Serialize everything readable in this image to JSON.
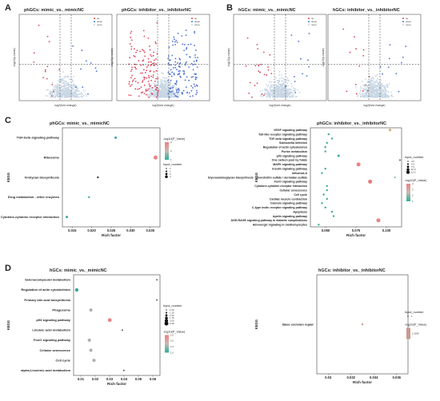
{
  "panels": {
    "A": {
      "letter": "A"
    },
    "B": {
      "letter": "B"
    },
    "C": {
      "letter": "C"
    },
    "D": {
      "letter": "D"
    }
  },
  "volcano": {
    "xlabel": "log2(fold change)",
    "ylabel": "-log10(p-value)",
    "legend": [
      "up",
      "down",
      "none"
    ],
    "colors": {
      "up": "#e0455a",
      "down": "#4a6fd4",
      "none": "#c7d6e4"
    },
    "plots": [
      {
        "title": "phGCs: mimic_vs._mimicNC"
      },
      {
        "title": "phGCs: inhibitor_vs._inhibitorNC"
      },
      {
        "title": "hGCs: mimic_vs._mimicNC"
      },
      {
        "title": "hGCs: inhibitor_vs._inhibitorNC"
      }
    ]
  },
  "common": {
    "kegg_label": "KEGG",
    "rich_label": "Rich factor",
    "input_label": "Input_number",
    "pval_label": "-log10(P_Value)"
  },
  "chart_data": [
    {
      "type": "scatter",
      "title": "phGCs: mimic_vs._mimicNC",
      "categories": [
        "TGF-beta signaling pathway",
        "Ribosome",
        "N-Glycan biosynthesis",
        "Drug metabolism - other enzymes",
        "Cytokine-cytokine receptor interaction"
      ],
      "x": [
        0.026,
        0.035,
        0.022,
        0.02,
        0.015
      ],
      "xlim": [
        0.014,
        0.036
      ],
      "xticks": [
        "0.015",
        "0.020",
        "0.025",
        "0.030",
        "0.035"
      ],
      "colors": [
        "#3aa89a",
        "#e98686",
        "#3a3a3a",
        "#3aa89a",
        "#3aa89a"
      ],
      "sizes": [
        1.5,
        2.5,
        1.2,
        1.2,
        1.5
      ],
      "input_legend": [
        "1",
        "2",
        "3",
        "4"
      ],
      "pval_ticks": [
        "3",
        "2",
        "1"
      ]
    },
    {
      "type": "scatter",
      "title": "phGCs: inhibitor_vs._inhibitorNC",
      "categories": [
        "VEGF signaling pathway",
        "Toll-like receptor signaling pathway",
        "TGF-beta signaling pathway",
        "Salmonella infection",
        "Regulation of actin cytoskeleton",
        "Purine metabolism",
        "p53 signaling pathway",
        "One carbon pool by folate",
        "MAPK signaling pathway",
        "Insulin signaling pathway",
        "Influenza A",
        "Glycosaminoglycan biosynthesis - chondroitin sulfate / dermatan sulfate",
        "FoxO signaling pathway",
        "Cytokine-cytokine receptor interaction",
        "Cellular senescence",
        "Cell cycle",
        "Cardiac muscle contraction",
        "Calcium signaling pathway",
        "C-type lectin receptor signaling pathway",
        "Apoptosis",
        "Apelin signaling pathway",
        "AGE-RAGE signaling pathway in diabetic complications",
        "Adrenergic signaling in cardiomyocytes"
      ],
      "x": [
        0.093,
        0.056,
        0.058,
        0.055,
        0.054,
        0.054,
        0.062,
        0.099,
        0.074,
        0.054,
        0.052,
        0.096,
        0.081,
        0.055,
        0.055,
        0.053,
        0.055,
        0.052,
        0.054,
        0.058,
        0.059,
        0.086,
        0.05
      ],
      "xlim": [
        0.045,
        0.1
      ],
      "xticks": [
        "0.050",
        "0.075",
        "0.100"
      ],
      "colors": [
        "#d9a06b",
        "#3aa89a",
        "#3aa89a",
        "#3aa89a",
        "#3aa89a",
        "#3aa89a",
        "#3aa89a",
        "#3a3a3a",
        "#e98686",
        "#3aa89a",
        "#3aa89a",
        "#3aa89a",
        "#e97a7a",
        "#3aa89a",
        "#3aa89a",
        "#3aa89a",
        "#3aa89a",
        "#3aa89a",
        "#3aa89a",
        "#3aa89a",
        "#3aa89a",
        "#e98686",
        "#3aa89a"
      ],
      "sizes": [
        1.5,
        1.2,
        1.2,
        1.2,
        1.2,
        1.2,
        1.5,
        0.9,
        2.5,
        1.2,
        1.2,
        0.9,
        2.5,
        1.2,
        1.2,
        1.2,
        1.2,
        1.2,
        1.2,
        1.2,
        1.2,
        2.5,
        1.2
      ],
      "input_legend": [
        "4.0",
        "5.0",
        "7.5",
        "10.0",
        "12.5"
      ],
      "pval_ticks": [
        "4",
        "3",
        "2",
        "1"
      ]
    },
    {
      "type": "scatter",
      "title": "hGCs: mimic_vs._mimicNC",
      "categories": [
        "Selenocompound metabolism",
        "Regulation of actin cytoskeleton",
        "Primary bile acid biosynthesis",
        "Phagosome",
        "p53 signaling pathway",
        "Linoleic acid metabolism",
        "FoxO signaling pathway",
        "Cellular senescence",
        "Cell cycle",
        "alpha-Linolenic acid metabolism"
      ],
      "x": [
        0.062,
        0.011,
        0.062,
        0.02,
        0.032,
        0.04,
        0.019,
        0.02,
        0.022,
        0.041
      ],
      "xlim": [
        0.009,
        0.064
      ],
      "xticks": [
        "0.01",
        "0.02",
        "0.03",
        "0.04",
        "0.05",
        "0.06"
      ],
      "colors": [
        "#3a3a3a",
        "#3aa89a",
        "#3a3a3a",
        "#a9b3a6",
        "#e98686",
        "#3a3a3a",
        "#a9b3a6",
        "#a9b3a6",
        "#a9b3a6",
        "#3a3a3a"
      ],
      "sizes": [
        0.9,
        2.2,
        0.9,
        2.0,
        2.4,
        0.9,
        2.0,
        2.0,
        2.0,
        0.9
      ],
      "input_legend": [
        "1.00",
        "1.25",
        "1.50",
        "1.75",
        "2.00",
        "2.25"
      ],
      "pval_ticks": [
        "2.5",
        "2.0",
        "1.5",
        "1.0"
      ]
    },
    {
      "type": "scatter",
      "title": "hGCs: inhibitor_vs._inhibitorNC",
      "categories": [
        "Base excision repair"
      ],
      "x": [
        0.033
      ],
      "xlim": [
        0.029,
        0.037
      ],
      "xticks": [
        "0.03",
        "0.032",
        "0.034",
        "0.036"
      ],
      "colors": [
        "#c89a8e"
      ],
      "sizes": [
        1.2
      ],
      "input_legend": [
        "1"
      ],
      "pval_ticks": [
        "1.3039"
      ]
    }
  ]
}
